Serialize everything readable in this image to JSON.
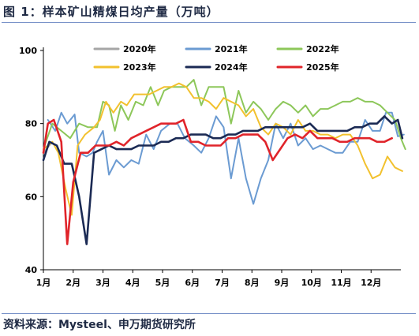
{
  "title": "图 1：样本矿山精煤日均产量（万吨）",
  "source": "资料来源：Mysteel、申万期货研究所",
  "chart_data": {
    "type": "line",
    "ylim": [
      40,
      100
    ],
    "yticks": [
      40,
      60,
      80,
      100
    ],
    "xlim": [
      1,
      13
    ],
    "xticks": [
      {
        "label": "1月",
        "v": 1
      },
      {
        "label": "2月",
        "v": 2
      },
      {
        "label": "3月",
        "v": 3
      },
      {
        "label": "4月",
        "v": 4
      },
      {
        "label": "5月",
        "v": 5
      },
      {
        "label": "6月",
        "v": 6
      },
      {
        "label": "7月",
        "v": 7
      },
      {
        "label": "8月",
        "v": 8
      },
      {
        "label": "9月",
        "v": 9
      },
      {
        "label": "10月",
        "v": 10
      },
      {
        "label": "11月",
        "v": 11
      },
      {
        "label": "12月",
        "v": 12
      }
    ],
    "legend": "top",
    "series": [
      {
        "name": "2020年",
        "color": "#a6a6a6",
        "width": 2,
        "points": [
          [
            1.0,
            72
          ],
          [
            1.3,
            75
          ]
        ]
      },
      {
        "name": "2021年",
        "color": "#6b9bd2",
        "width": 2,
        "points": [
          [
            1.15,
            81
          ],
          [
            1.4,
            78
          ],
          [
            1.6,
            83
          ],
          [
            1.8,
            80
          ],
          [
            2.05,
            82.5
          ],
          [
            2.2,
            72
          ],
          [
            2.45,
            71
          ],
          [
            2.65,
            72
          ],
          [
            2.8,
            75
          ],
          [
            3.0,
            78
          ],
          [
            3.2,
            66
          ],
          [
            3.45,
            70
          ],
          [
            3.7,
            68
          ],
          [
            3.95,
            70
          ],
          [
            4.2,
            69
          ],
          [
            4.45,
            77
          ],
          [
            4.7,
            73
          ],
          [
            4.95,
            78
          ],
          [
            5.25,
            80
          ],
          [
            5.5,
            80
          ],
          [
            5.75,
            76
          ],
          [
            6.05,
            74
          ],
          [
            6.3,
            72
          ],
          [
            6.55,
            76
          ],
          [
            6.8,
            82
          ],
          [
            7.05,
            79
          ],
          [
            7.3,
            65
          ],
          [
            7.55,
            76
          ],
          [
            7.8,
            65
          ],
          [
            8.05,
            58
          ],
          [
            8.3,
            65
          ],
          [
            8.55,
            70
          ],
          [
            8.8,
            80
          ],
          [
            9.05,
            76
          ],
          [
            9.3,
            80
          ],
          [
            9.55,
            74
          ],
          [
            9.8,
            76
          ],
          [
            10.05,
            73
          ],
          [
            10.3,
            74
          ],
          [
            10.55,
            73
          ],
          [
            10.8,
            72
          ],
          [
            11.05,
            72
          ],
          [
            11.3,
            75
          ],
          [
            11.55,
            75
          ],
          [
            11.8,
            81
          ],
          [
            12.05,
            78
          ],
          [
            12.3,
            78
          ],
          [
            12.5,
            83
          ],
          [
            12.7,
            83
          ],
          [
            12.9,
            76.5
          ],
          [
            13.1,
            77
          ]
        ]
      },
      {
        "name": "2022年",
        "color": "#8dc75a",
        "width": 2,
        "points": [
          [
            1.0,
            73
          ],
          [
            1.3,
            80
          ],
          [
            1.6,
            78
          ],
          [
            1.9,
            76
          ],
          [
            2.2,
            80
          ],
          [
            2.5,
            79
          ],
          [
            2.8,
            79
          ],
          [
            3.0,
            86
          ],
          [
            3.2,
            85
          ],
          [
            3.4,
            78
          ],
          [
            3.6,
            85
          ],
          [
            3.85,
            81
          ],
          [
            4.1,
            86
          ],
          [
            4.35,
            85
          ],
          [
            4.6,
            90
          ],
          [
            4.85,
            85
          ],
          [
            5.05,
            89
          ],
          [
            5.3,
            90
          ],
          [
            5.55,
            90
          ],
          [
            5.8,
            90
          ],
          [
            6.05,
            92
          ],
          [
            6.3,
            85
          ],
          [
            6.55,
            90
          ],
          [
            6.8,
            90
          ],
          [
            7.05,
            90
          ],
          [
            7.3,
            80
          ],
          [
            7.55,
            89
          ],
          [
            7.8,
            83
          ],
          [
            8.05,
            86
          ],
          [
            8.3,
            84
          ],
          [
            8.55,
            81
          ],
          [
            8.8,
            84
          ],
          [
            9.05,
            86
          ],
          [
            9.3,
            85
          ],
          [
            9.55,
            83
          ],
          [
            9.8,
            85
          ],
          [
            10.05,
            82
          ],
          [
            10.3,
            84
          ],
          [
            10.55,
            84
          ],
          [
            10.8,
            85
          ],
          [
            11.05,
            86
          ],
          [
            11.3,
            86
          ],
          [
            11.55,
            87
          ],
          [
            11.8,
            86
          ],
          [
            12.05,
            86
          ],
          [
            12.3,
            85
          ],
          [
            12.55,
            83
          ],
          [
            12.8,
            81
          ],
          [
            13.0,
            76
          ],
          [
            13.15,
            73
          ]
        ]
      },
      {
        "name": "2023年",
        "color": "#f2c12e",
        "width": 2,
        "points": [
          [
            1.0,
            73
          ],
          [
            1.3,
            75
          ],
          [
            1.5,
            72
          ],
          [
            1.75,
            62
          ],
          [
            1.95,
            55
          ],
          [
            2.15,
            74
          ],
          [
            2.4,
            77
          ],
          [
            2.7,
            79
          ],
          [
            2.9,
            81
          ],
          [
            3.1,
            86
          ],
          [
            3.35,
            83
          ],
          [
            3.6,
            86
          ],
          [
            3.8,
            85
          ],
          [
            4.05,
            88
          ],
          [
            4.3,
            88
          ],
          [
            4.55,
            88
          ],
          [
            4.8,
            89
          ],
          [
            5.05,
            90
          ],
          [
            5.3,
            90
          ],
          [
            5.55,
            91
          ],
          [
            5.8,
            90
          ],
          [
            6.05,
            87
          ],
          [
            6.3,
            87
          ],
          [
            6.55,
            86
          ],
          [
            6.8,
            84
          ],
          [
            7.05,
            87
          ],
          [
            7.3,
            86
          ],
          [
            7.55,
            85
          ],
          [
            7.8,
            82
          ],
          [
            8.05,
            84
          ],
          [
            8.3,
            79
          ],
          [
            8.55,
            77
          ],
          [
            8.8,
            80
          ],
          [
            9.05,
            79
          ],
          [
            9.3,
            77
          ],
          [
            9.55,
            81
          ],
          [
            9.8,
            78
          ],
          [
            10.05,
            78
          ],
          [
            10.3,
            77
          ],
          [
            10.55,
            77
          ],
          [
            10.8,
            76
          ],
          [
            11.05,
            77
          ],
          [
            11.3,
            77
          ],
          [
            11.55,
            74
          ],
          [
            11.8,
            69
          ],
          [
            12.05,
            65
          ],
          [
            12.3,
            66
          ],
          [
            12.55,
            71
          ],
          [
            12.8,
            68
          ],
          [
            13.05,
            67
          ]
        ]
      },
      {
        "name": "2024年",
        "color": "#1b2a54",
        "width": 2.6,
        "points": [
          [
            1.0,
            70
          ],
          [
            1.2,
            75
          ],
          [
            1.45,
            74
          ],
          [
            1.7,
            69
          ],
          [
            1.95,
            69
          ],
          [
            2.2,
            60
          ],
          [
            2.45,
            47
          ],
          [
            2.7,
            72
          ],
          [
            2.95,
            73
          ],
          [
            3.2,
            74
          ],
          [
            3.45,
            73
          ],
          [
            3.7,
            73
          ],
          [
            3.95,
            73
          ],
          [
            4.2,
            74
          ],
          [
            4.45,
            74
          ],
          [
            4.7,
            74
          ],
          [
            4.95,
            75
          ],
          [
            5.2,
            75
          ],
          [
            5.45,
            76
          ],
          [
            5.7,
            76
          ],
          [
            5.95,
            77
          ],
          [
            6.2,
            77
          ],
          [
            6.45,
            77
          ],
          [
            6.7,
            76
          ],
          [
            6.95,
            76
          ],
          [
            7.2,
            77
          ],
          [
            7.45,
            77
          ],
          [
            7.7,
            78
          ],
          [
            7.95,
            78
          ],
          [
            8.2,
            78
          ],
          [
            8.45,
            79
          ],
          [
            8.7,
            79
          ],
          [
            8.95,
            79
          ],
          [
            9.2,
            79
          ],
          [
            9.45,
            79
          ],
          [
            9.7,
            79
          ],
          [
            9.95,
            80
          ],
          [
            10.2,
            78
          ],
          [
            10.45,
            78
          ],
          [
            10.7,
            78
          ],
          [
            10.95,
            78
          ],
          [
            11.2,
            78
          ],
          [
            11.45,
            79
          ],
          [
            11.7,
            79
          ],
          [
            11.95,
            80
          ],
          [
            12.2,
            80
          ],
          [
            12.45,
            82
          ],
          [
            12.7,
            80
          ],
          [
            12.9,
            81
          ],
          [
            13.05,
            76
          ]
        ]
      },
      {
        "name": "2025年",
        "color": "#e0242a",
        "width": 2.6,
        "points": [
          [
            1.0,
            72
          ],
          [
            1.15,
            80
          ],
          [
            1.35,
            81
          ],
          [
            1.6,
            75
          ],
          [
            1.8,
            47
          ],
          [
            2.0,
            64
          ],
          [
            2.25,
            72
          ],
          [
            2.5,
            72
          ],
          [
            2.75,
            74
          ],
          [
            3.0,
            74
          ],
          [
            3.2,
            74
          ],
          [
            3.45,
            75
          ],
          [
            3.7,
            74
          ],
          [
            3.95,
            76
          ],
          [
            4.2,
            77
          ],
          [
            4.45,
            78
          ],
          [
            4.7,
            79
          ],
          [
            4.95,
            80
          ],
          [
            5.2,
            80
          ],
          [
            5.45,
            80
          ],
          [
            5.7,
            81
          ],
          [
            5.95,
            75
          ],
          [
            6.2,
            75
          ],
          [
            6.45,
            74
          ],
          [
            6.7,
            74
          ],
          [
            6.95,
            74
          ],
          [
            7.2,
            76
          ],
          [
            7.45,
            76
          ],
          [
            7.7,
            77
          ],
          [
            7.95,
            77
          ],
          [
            8.2,
            77
          ],
          [
            8.45,
            75
          ],
          [
            8.7,
            70
          ],
          [
            8.95,
            73
          ],
          [
            9.2,
            76
          ],
          [
            9.45,
            77
          ],
          [
            9.7,
            76
          ],
          [
            9.95,
            78
          ],
          [
            10.2,
            76
          ],
          [
            10.45,
            76
          ],
          [
            10.7,
            76
          ],
          [
            10.95,
            75
          ],
          [
            11.2,
            75
          ],
          [
            11.45,
            76
          ],
          [
            11.7,
            76
          ],
          [
            11.95,
            76
          ],
          [
            12.2,
            75
          ],
          [
            12.45,
            75
          ],
          [
            12.7,
            76
          ]
        ]
      }
    ]
  }
}
